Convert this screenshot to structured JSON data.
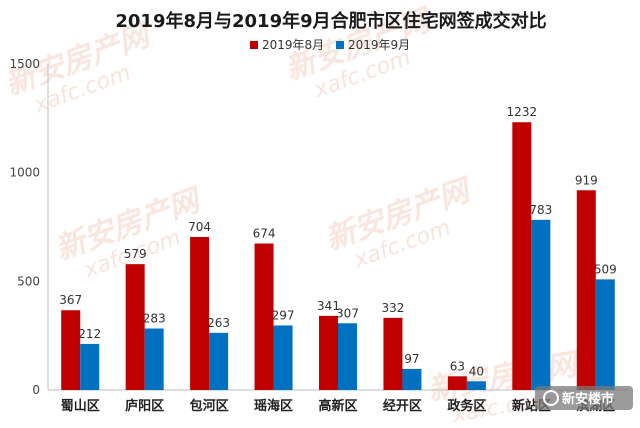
{
  "chart_data": {
    "type": "bar",
    "title": "2019年8月与2019年9月合肥市区住宅网签成交对比",
    "categories": [
      "蜀山区",
      "庐阳区",
      "包河区",
      "瑶海区",
      "高新区",
      "经开区",
      "政务区",
      "新站区",
      "滨湖区"
    ],
    "series": [
      {
        "name": "2019年8月",
        "color": "#c00000",
        "values": [
          367,
          579,
          704,
          674,
          341,
          332,
          63,
          1232,
          919
        ]
      },
      {
        "name": "2019年9月",
        "color": "#0070c0",
        "values": [
          212,
          283,
          263,
          297,
          307,
          97,
          40,
          783,
          509
        ]
      }
    ],
    "ylim": [
      0,
      1500
    ],
    "yticks": [
      0,
      500,
      1000,
      1500
    ],
    "grid": false,
    "legend_position": "top"
  },
  "watermark": {
    "brand_text": "新安房产网",
    "domain_text": "xafc.com"
  },
  "badge": {
    "text": "新安楼市"
  }
}
